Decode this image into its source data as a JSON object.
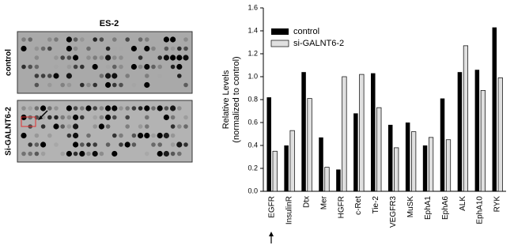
{
  "chart_data": {
    "type": "bar",
    "ylabel": [
      "Relative Levels",
      "(normalized to control)"
    ],
    "categories": [
      "EGFR",
      "InsulinR",
      "Dtx",
      "Mer",
      "HGFR",
      "c-Ret",
      "Tie-2",
      "VEGFR3",
      "MuSK",
      "EphA1",
      "EphA6",
      "ALK",
      "EphA10",
      "RYK"
    ],
    "series": [
      {
        "name": "control",
        "color": "#000000",
        "values": [
          0.82,
          0.4,
          1.04,
          0.47,
          0.19,
          0.68,
          1.03,
          0.58,
          0.6,
          0.4,
          0.81,
          1.04,
          1.06,
          1.43
        ]
      },
      {
        "name": "si-GALNT6-2",
        "color": "#e0e0e0",
        "values": [
          0.35,
          0.53,
          0.81,
          0.21,
          1.0,
          1.02,
          0.73,
          0.38,
          0.52,
          0.47,
          0.45,
          1.27,
          0.88,
          0.99
        ]
      }
    ],
    "ylim": [
      0,
      1.6
    ],
    "yticks": [
      {
        "value": 0,
        "label": "0.0"
      },
      0.2,
      0.4,
      0.6,
      0.8,
      {
        "value": 1,
        "label": "1.0"
      },
      1.2,
      1.4,
      1.6
    ],
    "legend": "top-left"
  },
  "blot": {
    "title": "ES-2",
    "rows": [
      "control",
      "Si-GALNT6-2"
    ]
  }
}
